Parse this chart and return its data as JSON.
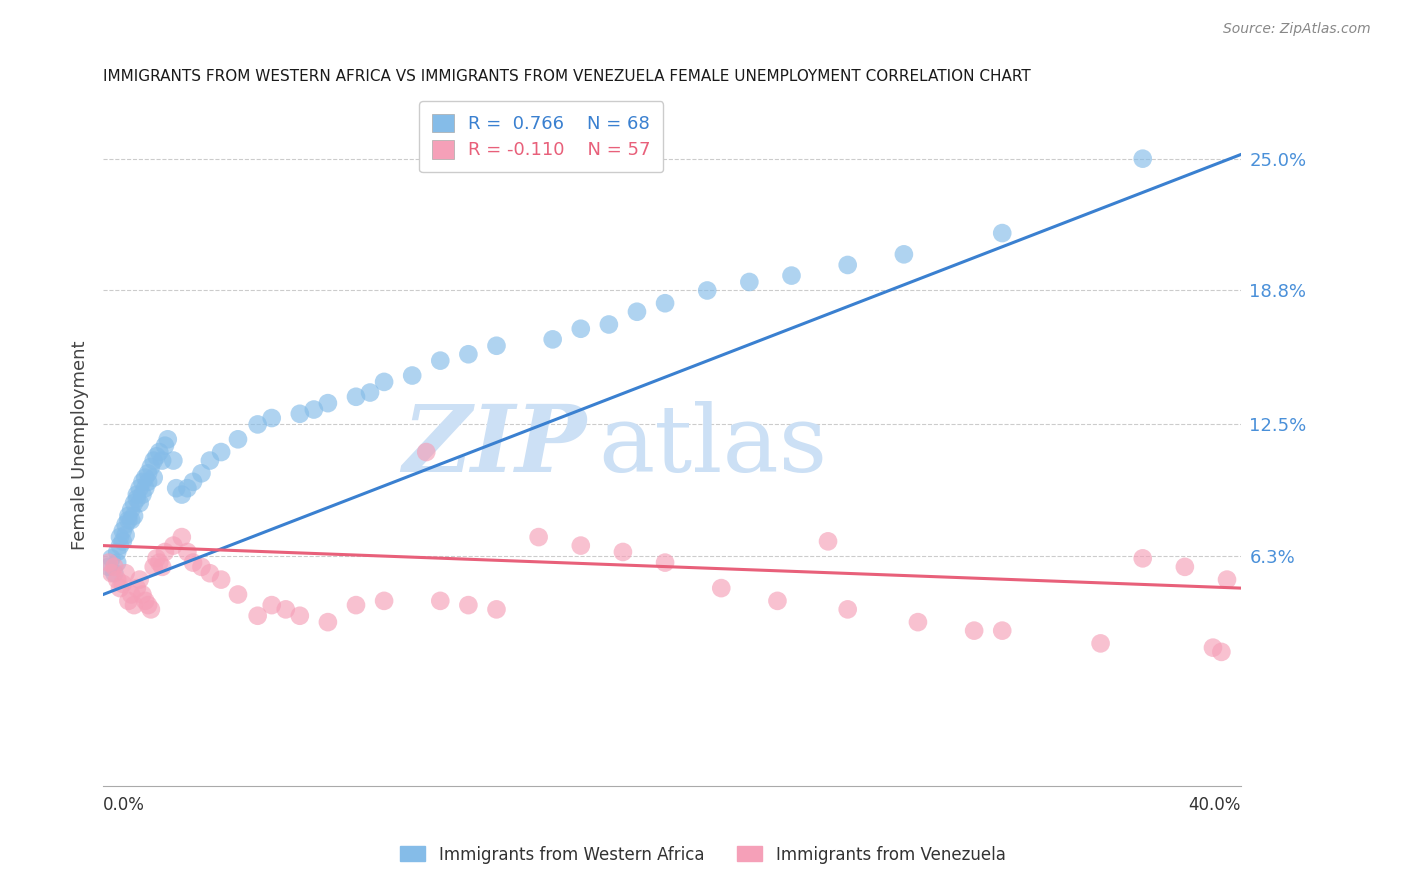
{
  "title": "IMMIGRANTS FROM WESTERN AFRICA VS IMMIGRANTS FROM VENEZUELA FEMALE UNEMPLOYMENT CORRELATION CHART",
  "source": "Source: ZipAtlas.com",
  "ylabel": "Female Unemployment",
  "ytick_labels": [
    "6.3%",
    "12.5%",
    "18.8%",
    "25.0%"
  ],
  "ytick_values": [
    0.063,
    0.125,
    0.188,
    0.25
  ],
  "xmin": 0.0,
  "xmax": 0.405,
  "ymin": -0.045,
  "ymax": 0.275,
  "blue_R": "0.766",
  "blue_N": "68",
  "pink_R": "-0.110",
  "pink_N": "57",
  "blue_color": "#85bce8",
  "pink_color": "#f5a0b8",
  "blue_line_color": "#3a80d0",
  "pink_line_color": "#e8607a",
  "blue_tick_color": "#4a90d9",
  "watermark_color": "#cce0f5",
  "legend_label_blue": "Immigrants from Western Africa",
  "legend_label_pink": "Immigrants from Venezuela",
  "blue_line_x0": 0.0,
  "blue_line_x1": 0.405,
  "blue_line_y0": 0.045,
  "blue_line_y1": 0.252,
  "pink_line_x0": 0.0,
  "pink_line_x1": 0.405,
  "pink_line_y0": 0.068,
  "pink_line_y1": 0.048,
  "blue_scatter_x": [
    0.002,
    0.003,
    0.004,
    0.005,
    0.005,
    0.006,
    0.006,
    0.007,
    0.007,
    0.008,
    0.008,
    0.009,
    0.009,
    0.01,
    0.01,
    0.011,
    0.011,
    0.012,
    0.012,
    0.013,
    0.013,
    0.014,
    0.014,
    0.015,
    0.015,
    0.016,
    0.016,
    0.017,
    0.018,
    0.018,
    0.019,
    0.02,
    0.021,
    0.022,
    0.023,
    0.025,
    0.026,
    0.028,
    0.03,
    0.032,
    0.035,
    0.038,
    0.042,
    0.048,
    0.055,
    0.06,
    0.07,
    0.075,
    0.08,
    0.09,
    0.095,
    0.1,
    0.11,
    0.12,
    0.13,
    0.14,
    0.16,
    0.17,
    0.18,
    0.19,
    0.2,
    0.215,
    0.23,
    0.245,
    0.265,
    0.285,
    0.32,
    0.37
  ],
  "blue_scatter_y": [
    0.058,
    0.062,
    0.055,
    0.06,
    0.065,
    0.068,
    0.072,
    0.07,
    0.075,
    0.073,
    0.078,
    0.08,
    0.082,
    0.085,
    0.08,
    0.088,
    0.082,
    0.09,
    0.092,
    0.095,
    0.088,
    0.098,
    0.092,
    0.1,
    0.095,
    0.102,
    0.098,
    0.105,
    0.108,
    0.1,
    0.11,
    0.112,
    0.108,
    0.115,
    0.118,
    0.108,
    0.095,
    0.092,
    0.095,
    0.098,
    0.102,
    0.108,
    0.112,
    0.118,
    0.125,
    0.128,
    0.13,
    0.132,
    0.135,
    0.138,
    0.14,
    0.145,
    0.148,
    0.155,
    0.158,
    0.162,
    0.165,
    0.17,
    0.172,
    0.178,
    0.182,
    0.188,
    0.192,
    0.195,
    0.2,
    0.205,
    0.215,
    0.25
  ],
  "pink_scatter_x": [
    0.002,
    0.003,
    0.004,
    0.005,
    0.006,
    0.007,
    0.008,
    0.009,
    0.01,
    0.011,
    0.012,
    0.013,
    0.014,
    0.015,
    0.016,
    0.017,
    0.018,
    0.019,
    0.02,
    0.021,
    0.022,
    0.025,
    0.028,
    0.03,
    0.032,
    0.035,
    0.038,
    0.042,
    0.048,
    0.055,
    0.06,
    0.065,
    0.07,
    0.08,
    0.09,
    0.1,
    0.115,
    0.12,
    0.13,
    0.14,
    0.155,
    0.17,
    0.185,
    0.2,
    0.22,
    0.24,
    0.265,
    0.29,
    0.32,
    0.355,
    0.37,
    0.385,
    0.395,
    0.398,
    0.4,
    0.258,
    0.31
  ],
  "pink_scatter_y": [
    0.06,
    0.055,
    0.058,
    0.052,
    0.048,
    0.05,
    0.055,
    0.042,
    0.045,
    0.04,
    0.048,
    0.052,
    0.045,
    0.042,
    0.04,
    0.038,
    0.058,
    0.062,
    0.06,
    0.058,
    0.065,
    0.068,
    0.072,
    0.065,
    0.06,
    0.058,
    0.055,
    0.052,
    0.045,
    0.035,
    0.04,
    0.038,
    0.035,
    0.032,
    0.04,
    0.042,
    0.112,
    0.042,
    0.04,
    0.038,
    0.072,
    0.068,
    0.065,
    0.06,
    0.048,
    0.042,
    0.038,
    0.032,
    0.028,
    0.022,
    0.062,
    0.058,
    0.02,
    0.018,
    0.052,
    0.07,
    0.028
  ]
}
